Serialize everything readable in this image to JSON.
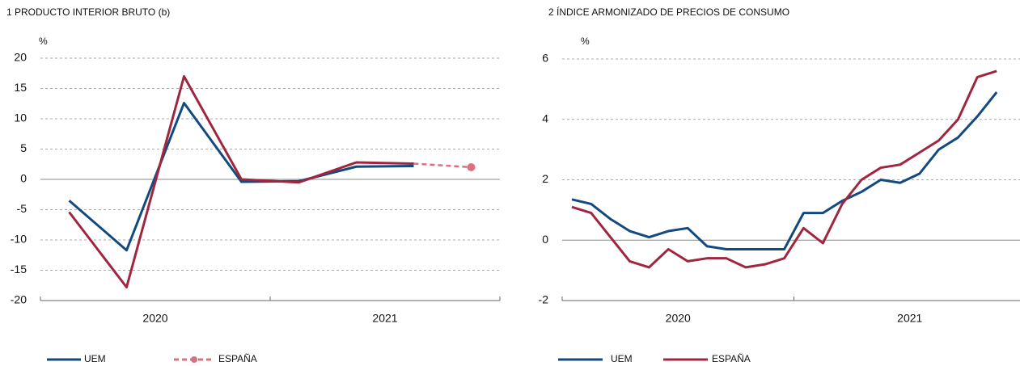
{
  "chart_data": [
    {
      "type": "line",
      "title": "1  PRODUCTO INTERIOR BRUTO (b)",
      "ylabel": "%",
      "categories": [
        null,
        null,
        null,
        null,
        null,
        null,
        null,
        null
      ],
      "year_labels": [
        "2020",
        "2021"
      ],
      "ylim": [
        -20,
        20
      ],
      "yticks": [
        20,
        15,
        10,
        5,
        0,
        -5,
        -10,
        -15,
        -20
      ],
      "grid": true,
      "series": [
        {
          "name": "UEM",
          "color": "#124a80",
          "values": [
            -3.5,
            -11.7,
            12.6,
            -0.4,
            -0.3,
            2.1,
            2.2,
            null
          ]
        },
        {
          "name": "ESPAÑA",
          "color": "#a0263f",
          "values": [
            -5.4,
            -17.8,
            17.0,
            0.0,
            -0.5,
            2.8,
            2.6,
            2.0
          ],
          "projected_from": 6,
          "projection_color": "#dc6f80"
        }
      ]
    },
    {
      "type": "line",
      "title": "2  ÍNDICE ARMONIZADO DE PRECIOS DE CONSUMO",
      "ylabel": "%",
      "categories": [
        null,
        null,
        null,
        null,
        null,
        null,
        null,
        null,
        null,
        null,
        null,
        null,
        null,
        null,
        null,
        null,
        null,
        null,
        null,
        null,
        null,
        null,
        null,
        null
      ],
      "year_labels": [
        "2020",
        "2021"
      ],
      "ylim": [
        -2,
        6
      ],
      "yticks": [
        6,
        4,
        2,
        0,
        -2
      ],
      "grid": true,
      "series": [
        {
          "name": "UEM",
          "color": "#124a80",
          "values": [
            1.35,
            1.2,
            0.7,
            0.3,
            0.1,
            0.3,
            0.4,
            -0.2,
            -0.3,
            -0.3,
            -0.3,
            -0.3,
            0.9,
            0.9,
            1.3,
            1.6,
            2.0,
            1.9,
            2.2,
            3.0,
            3.4,
            4.1,
            4.9,
            null
          ]
        },
        {
          "name": "ESPAÑA",
          "color": "#a0263f",
          "values": [
            1.1,
            0.9,
            0.1,
            -0.7,
            -0.9,
            -0.3,
            -0.7,
            -0.6,
            -0.6,
            -0.9,
            -0.8,
            -0.6,
            0.4,
            -0.1,
            1.2,
            2.0,
            2.4,
            2.5,
            2.9,
            3.3,
            4.0,
            5.4,
            5.6,
            null
          ]
        }
      ]
    }
  ]
}
